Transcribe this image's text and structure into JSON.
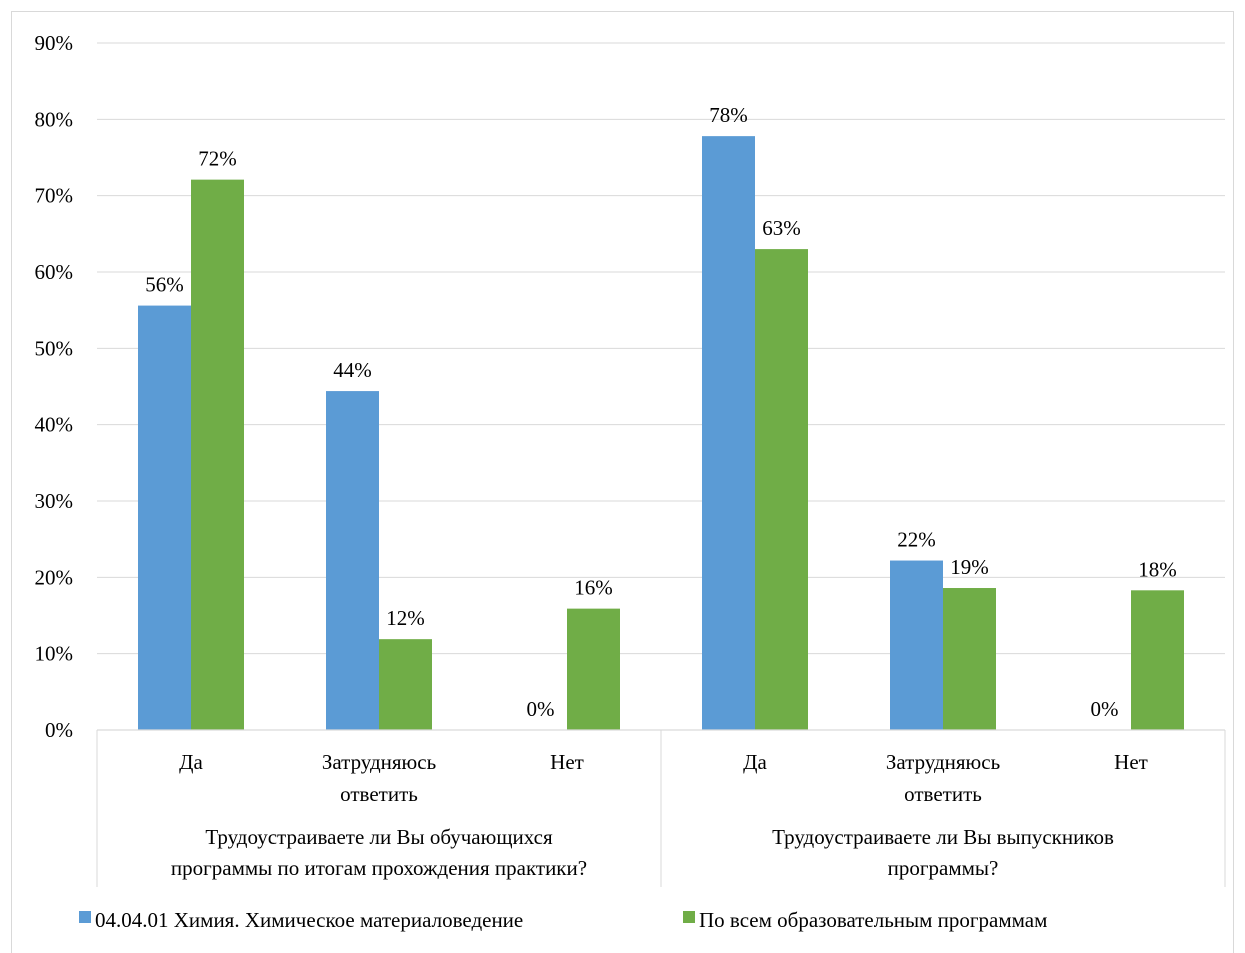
{
  "chart_data": {
    "type": "bar",
    "y_ticks": [
      "0%",
      "10%",
      "20%",
      "30%",
      "40%",
      "50%",
      "60%",
      "70%",
      "80%",
      "90%"
    ],
    "ylim": [
      0,
      90
    ],
    "grid": true,
    "legend_position": "bottom",
    "groups": [
      {
        "label_lines": [
          "Трудоустраиваете ли Вы обучающихся",
          "программы по итогам прохождения практики?"
        ],
        "categories": [
          {
            "label_lines": [
              "Да"
            ]
          },
          {
            "label_lines": [
              "Затрудняюсь",
              "ответить"
            ]
          },
          {
            "label_lines": [
              "Нет"
            ]
          }
        ]
      },
      {
        "label_lines": [
          "Трудоустраиваете ли Вы выпускников",
          "программы?"
        ],
        "categories": [
          {
            "label_lines": [
              "Да"
            ]
          },
          {
            "label_lines": [
              "Затрудняюсь",
              "ответить"
            ]
          },
          {
            "label_lines": [
              "Нет"
            ]
          }
        ]
      }
    ],
    "series": [
      {
        "name": "04.04.01 Химия. Химическое материаловедение",
        "color": "#5B9BD5",
        "values": [
          55.6,
          44.4,
          0,
          77.8,
          22.2,
          0
        ],
        "labels": [
          "56%",
          "44%",
          "0%",
          "78%",
          "22%",
          "0%"
        ]
      },
      {
        "name": "По всем образовательным программам",
        "color": "#70AD47",
        "values": [
          72.1,
          11.9,
          15.9,
          63.0,
          18.6,
          18.3
        ],
        "labels": [
          "72%",
          "12%",
          "16%",
          "63%",
          "19%",
          "18%"
        ]
      }
    ]
  }
}
